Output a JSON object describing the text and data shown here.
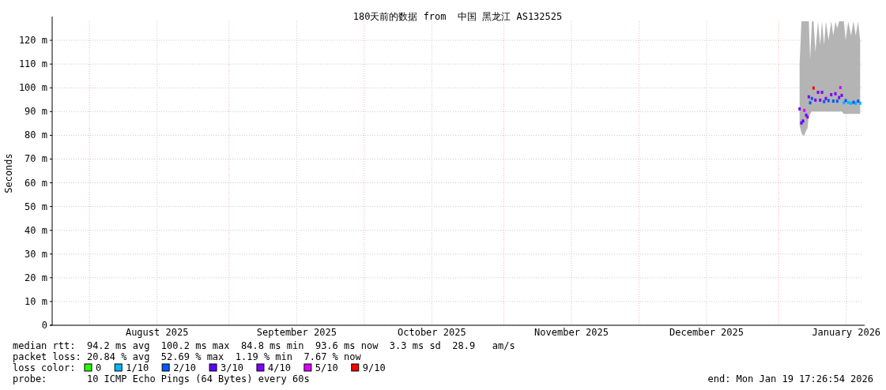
{
  "chart_data": {
    "type": "scatter",
    "title": "180天前的数据 from  中国 黑龙江 AS132525",
    "ylabel": "Seconds",
    "xlim": [
      "2025-07-23T17:27",
      "2026-01-19T17:27"
    ],
    "xticks": [
      {
        "value": "2025-08-16",
        "label": "August 2025"
      },
      {
        "value": "2025-09-16",
        "label": "September 2025"
      },
      {
        "value": "2025-10-16",
        "label": "October 2025"
      },
      {
        "value": "2025-11-16",
        "label": "November 2025"
      },
      {
        "value": "2025-12-16",
        "label": "December 2025"
      },
      {
        "value": "2026-01-16",
        "label": "January 2026"
      }
    ],
    "ylim": [
      0,
      128
    ],
    "yticks": [
      0,
      {
        "value": 10,
        "label": "10 m"
      },
      {
        "value": 20,
        "label": "20 m"
      },
      {
        "value": 30,
        "label": "30 m"
      },
      {
        "value": 40,
        "label": "40 m"
      },
      {
        "value": 50,
        "label": "50 m"
      },
      {
        "value": 60,
        "label": "60 m"
      },
      {
        "value": 70,
        "label": "70 m"
      },
      {
        "value": 80,
        "label": "80 m"
      },
      {
        "value": 90,
        "label": "90 m"
      },
      {
        "value": 100,
        "label": "100 m"
      },
      {
        "value": 110,
        "label": "110 m"
      },
      {
        "value": 120,
        "label": "120 m"
      }
    ],
    "grid": true,
    "legend": "bottom left",
    "legend_title": "loss color:",
    "ref_lines": [
      {
        "axis": "x",
        "value": "2025-08-01",
        "color": "#ffaaaa",
        "line_style": "dotted"
      },
      {
        "axis": "x",
        "value": "2025-09-01",
        "color": "#ffaaaa",
        "line_style": "dotted"
      },
      {
        "axis": "x",
        "value": "2025-10-01",
        "color": "#ffaaaa",
        "line_style": "dotted"
      },
      {
        "axis": "x",
        "value": "2025-11-01",
        "color": "#ffaaaa",
        "line_style": "dotted"
      },
      {
        "axis": "x",
        "value": "2025-12-01",
        "color": "#ffaaaa",
        "line_style": "dotted"
      },
      {
        "axis": "x",
        "value": "2026-01-01",
        "color": "#ffaaaa",
        "line_style": "dotted"
      }
    ],
    "series": [
      {
        "type": "line",
        "color": "#b4b4b4",
        "x": [
          "2026-01-05T15:20",
          "2026-01-06T01:00",
          "2026-01-06T09:30",
          "2026-01-06T16:30",
          "2026-01-07T02:20",
          "2026-01-07T09:30",
          "2026-01-07T16:20",
          "2026-01-07T23:30",
          "2026-01-08T09:00",
          "2026-01-08T17:30",
          "2026-01-09T03:30",
          "2026-01-09T17:30",
          "2026-01-10T04:50",
          "2026-01-10T14:40",
          "2026-01-11T01:50",
          "2026-01-11T11:30",
          "2026-01-12T01:20",
          "2026-01-12T15:50",
          "2026-01-13T02:50",
          "2026-01-13T14:10",
          "2026-01-13T23:50",
          "2026-01-14T09:50",
          "2026-01-14T16:30",
          "2026-01-14T23:40",
          "2026-01-15T11:10",
          "2026-01-15T20:50",
          "2026-01-16T10:40",
          "2026-01-17T01:10",
          "2026-01-17T14:50",
          "2026-01-18T02:20",
          "2026-01-18T14:50",
          "2026-01-19T01:50"
        ],
        "values": [
          null,
          null,
          null,
          null,
          null,
          null,
          null,
          null,
          null,
          null,
          null,
          null,
          null,
          null,
          null,
          null,
          null,
          null,
          null,
          null,
          null,
          null,
          null,
          null,
          null,
          null,
          null,
          null,
          null,
          null,
          null,
          null
        ],
        "lower": [
          84,
          81,
          80,
          80,
          82,
          83,
          88,
          89,
          90,
          90,
          90,
          90,
          90,
          90,
          90,
          90,
          90,
          90,
          90,
          90,
          90,
          90,
          90,
          90,
          89,
          89,
          89,
          89,
          89,
          89,
          89,
          89
        ],
        "upper": [
          110,
          128,
          128,
          128,
          128,
          128,
          128,
          112,
          128,
          128,
          115,
          128,
          118,
          128,
          118,
          128,
          120,
          128,
          122,
          128,
          125,
          128,
          128,
          128,
          128,
          120,
          128,
          122,
          128,
          122,
          128,
          120
        ]
      },
      {
        "name": "0",
        "color": "#26ff00",
        "marker": "square"
      },
      {
        "name": "1/10",
        "color": "#00b8ff",
        "marker": "square",
        "x": [
          "2026-01-15T11:10",
          "2026-01-16T10:40",
          "2026-01-17T01:10",
          "2026-01-18T02:20",
          "2026-01-19T01:50"
        ],
        "values": [
          93.7,
          93.8,
          93.5,
          93.5,
          93.5
        ]
      },
      {
        "name": "2/10",
        "color": "#0059ff",
        "marker": "square",
        "x": [
          "2026-01-07T23:30",
          "2026-01-08T09:00",
          "2026-01-11T01:50",
          "2026-01-12T01:20",
          "2026-01-13T02:50",
          "2026-01-13T23:50",
          "2026-01-15T20:50",
          "2026-01-17T14:50",
          "2026-01-18T14:50"
        ],
        "values": [
          93.7,
          95.5,
          94.2,
          94.6,
          94.4,
          94.4,
          94.6,
          93.9,
          94.4
        ]
      },
      {
        "name": "3/10",
        "color": "#5e00ff",
        "marker": "square",
        "x": [
          "2026-01-06T01:00",
          "2026-01-06T09:30"
        ],
        "values": [
          85.2,
          86
        ]
      },
      {
        "name": "4/10",
        "color": "#7e00ff",
        "marker": "square",
        "x": [
          "2026-01-05T15:20",
          "2026-01-07T02:20",
          "2026-01-07T09:30",
          "2026-01-07T16:20",
          "2026-01-09T03:30",
          "2026-01-09T17:30",
          "2026-01-10T04:50",
          "2026-01-10T14:40",
          "2026-01-11T11:30",
          "2026-01-12T15:50",
          "2026-01-13T14:10",
          "2026-01-14T09:50",
          "2026-01-14T23:40"
        ],
        "values": [
          91.1,
          88.5,
          87.7,
          96.2,
          94.8,
          98.1,
          94.8,
          98.1,
          95.5,
          97.1,
          97.5,
          95.9,
          96.8
        ]
      },
      {
        "name": "5/10",
        "color": "#dd00ff",
        "marker": "square",
        "x": [
          "2026-01-06T16:30",
          "2026-01-14T16:30"
        ],
        "values": [
          90.5,
          100.1
        ]
      },
      {
        "name": "9/10",
        "color": "#ff0000",
        "marker": "square",
        "x": [
          "2026-01-08T17:30"
        ],
        "values": [
          99.9
        ]
      }
    ],
    "annotations": [
      "median rtt:  94.2 ms avg  100.2 ms max  84.8 ms min  93.6 ms now  3.3 ms sd  28.9   am/s",
      "packet loss: 20.84 % avg  52.69 % max  1.19 % min  7.67 % now",
      "probe:       10 ICMP Echo Pings (64 Bytes) every 60s",
      "end: Mon Jan 19 17:26:54 2026"
    ]
  }
}
